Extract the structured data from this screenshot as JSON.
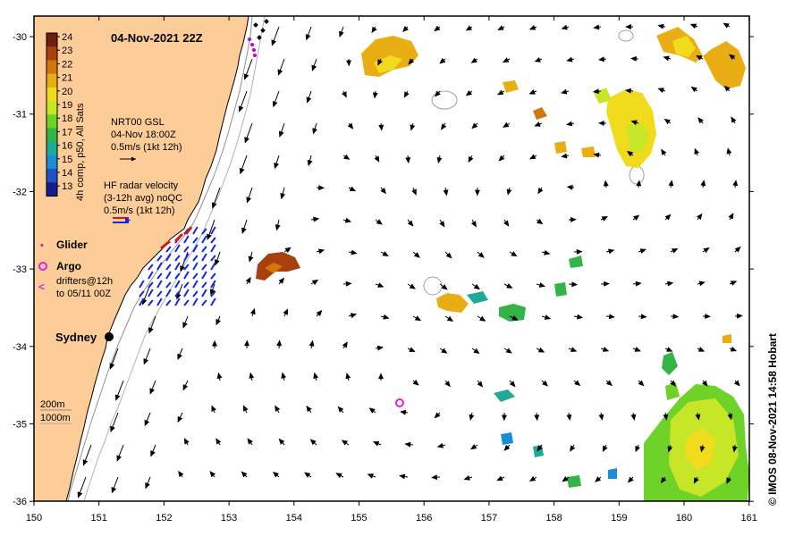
{
  "title": "04-Nov-2021 22Z",
  "credit": "© IMOS 08-Nov-2021 14:58 Hobart",
  "x_ticks": [
    "150",
    "151",
    "152",
    "153",
    "154",
    "155",
    "156",
    "157",
    "158",
    "159",
    "160",
    "161"
  ],
  "y_ticks": [
    "-30",
    "-31",
    "-32",
    "-33",
    "-34",
    "-35",
    "-36"
  ],
  "colorbar": {
    "title": "4h comp, p50, All Sats",
    "ticks": [
      "24",
      "23",
      "22",
      "21",
      "20",
      "19",
      "18",
      "17",
      "16",
      "15",
      "14",
      "13"
    ],
    "colors": [
      "#6e1e12",
      "#a8400e",
      "#d2780a",
      "#e8ae14",
      "#f0dc1c",
      "#c8e628",
      "#6ed228",
      "#32b446",
      "#1eaa96",
      "#1e8cd2",
      "#1e50c8",
      "#141e8c"
    ]
  },
  "legend": {
    "gsl_line1": "NRT00 GSL",
    "gsl_line2": "04-Nov 18:00Z",
    "gsl_line3": "0.5m/s (1kt 12h)",
    "hf_line1": "HF radar velocity",
    "hf_line2": "(3-12h avg) noQC",
    "hf_line3": "0.5m/s (1kt 12h)",
    "glider": "Glider",
    "argo": "Argo",
    "drifters_line1": "drifters@12h",
    "drifters_line2": "to 05/11 00Z"
  },
  "city": "Sydney",
  "isobaths": {
    "line1": "200m",
    "line2": "1000m"
  },
  "colors": {
    "land": "#fccc99",
    "glider": "#cc00cc",
    "argo": "#e020e0",
    "hf_arrow": "#1428dc",
    "hf_red": "#dc1414"
  }
}
